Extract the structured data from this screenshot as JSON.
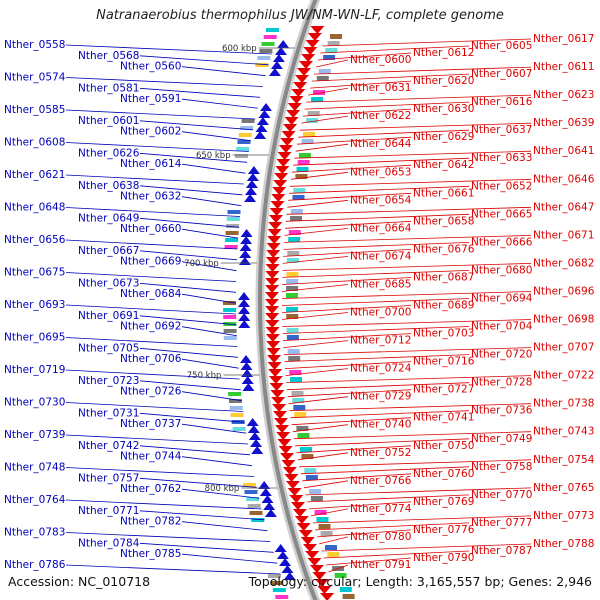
{
  "title": "Natranaerobius thermophilus JW/NM-WN-LF, complete genome",
  "accession": "Accession: NC_010718",
  "summary": "Topology: circular; Length: 3,165,557 bp; Genes: 2,946",
  "colors": {
    "forward": "#e60000",
    "reverse": "#1010cc",
    "backbone": "#888888",
    "left_label": "#0000bb",
    "right_label": "#dd0000"
  },
  "scale_marks": [
    "600 kbp",
    "650 kbp",
    "700 kbp",
    "750 kbp",
    "800 kbp"
  ],
  "left_labels": [
    "Nther_0558",
    "Nther_0568",
    "Nther_0560",
    "Nther_0574",
    "Nther_0581",
    "Nther_0591",
    "Nther_0585",
    "Nther_0601",
    "Nther_0602",
    "Nther_0608",
    "Nther_0626",
    "Nther_0614",
    "Nther_0621",
    "Nther_0638",
    "Nther_0632",
    "Nther_0648",
    "Nther_0649",
    "Nther_0660",
    "Nther_0656",
    "Nther_0667",
    "Nther_0669",
    "Nther_0675",
    "Nther_0673",
    "Nther_0684",
    "Nther_0693",
    "Nther_0691",
    "Nther_0692",
    "Nther_0695",
    "Nther_0705",
    "Nther_0706",
    "Nther_0719",
    "Nther_0723",
    "Nther_0726",
    "Nther_0730",
    "Nther_0731",
    "Nther_0737",
    "Nther_0739",
    "Nther_0742",
    "Nther_0744",
    "Nther_0748",
    "Nther_0757",
    "Nther_0762",
    "Nther_0764",
    "Nther_0771",
    "Nther_0782",
    "Nther_0783",
    "Nther_0784",
    "Nther_0785",
    "Nther_0786"
  ],
  "right_labels": [
    "Nther_0617",
    "Nther_0605",
    "Nther_0612",
    "Nther_0600",
    "Nther_0611",
    "Nther_0607",
    "Nther_0620",
    "Nther_0631",
    "Nther_0623",
    "Nther_0616",
    "Nther_0630",
    "Nther_0622",
    "Nther_0639",
    "Nther_0637",
    "Nther_0629",
    "Nther_0644",
    "Nther_0641",
    "Nther_0633",
    "Nther_0642",
    "Nther_0653",
    "Nther_0646",
    "Nther_0652",
    "Nther_0661",
    "Nther_0654",
    "Nther_0647",
    "Nther_0665",
    "Nther_0658",
    "Nther_0664",
    "Nther_0671",
    "Nther_0666",
    "Nther_0676",
    "Nther_0674",
    "Nther_0682",
    "Nther_0680",
    "Nther_0687",
    "Nther_0685",
    "Nther_0696",
    "Nther_0694",
    "Nther_0689",
    "Nther_0700",
    "Nther_0698",
    "Nther_0704",
    "Nther_0703",
    "Nther_0712",
    "Nther_0707",
    "Nther_0720",
    "Nther_0716",
    "Nther_0724",
    "Nther_0722",
    "Nther_0728",
    "Nther_0727",
    "Nther_0729",
    "Nther_0738",
    "Nther_0736",
    "Nther_0741",
    "Nther_0740",
    "Nther_0743",
    "Nther_0749",
    "Nther_0750",
    "Nther_0752",
    "Nther_0754",
    "Nther_0758",
    "Nther_0760",
    "Nther_0766",
    "Nther_0765",
    "Nther_0770",
    "Nther_0769",
    "Nther_0774",
    "Nther_0773",
    "Nther_0777",
    "Nther_0776",
    "Nther_0780",
    "Nther_0788",
    "Nther_0787",
    "Nther_0790",
    "Nther_0791"
  ]
}
